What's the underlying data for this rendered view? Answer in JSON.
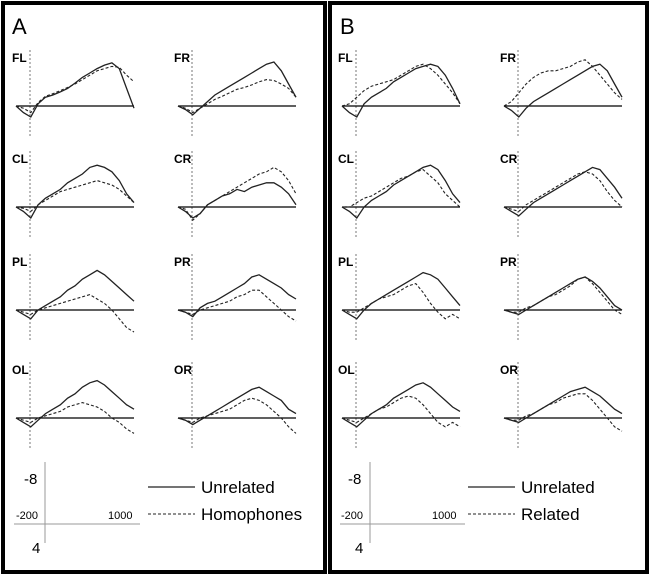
{
  "chart_data": [
    {
      "type": "line",
      "panel_label": "A",
      "legend": [
        "Unrelated",
        "Homophones"
      ],
      "scale": {
        "y_top": "-8",
        "y_bottom": "4",
        "x_start": "-200",
        "x_end": "1000"
      },
      "channels": [
        {
          "name": "FL",
          "series": [
            {
              "name": "Unrelated",
              "style": "solid",
              "values": [
                0.0,
                -1.5,
                -2.5,
                0.5,
                2.0,
                2.5,
                3.2,
                4.0,
                5.2,
                6.5,
                7.5,
                8.5,
                9.3,
                9.8,
                8.5,
                4.0,
                -0.5
              ]
            },
            {
              "name": "Homophones",
              "style": "dashed",
              "values": [
                0.0,
                -0.5,
                -1.5,
                0.8,
                2.2,
                2.8,
                3.5,
                4.2,
                5.0,
                6.0,
                7.0,
                8.0,
                8.5,
                9.0,
                8.8,
                7.0,
                5.5
              ]
            }
          ]
        },
        {
          "name": "FR",
          "series": [
            {
              "name": "Unrelated",
              "style": "solid",
              "values": [
                0.0,
                -0.8,
                -2.0,
                -0.5,
                1.0,
                2.5,
                3.5,
                4.5,
                5.5,
                6.5,
                7.5,
                8.5,
                9.5,
                10.0,
                8.0,
                5.0,
                2.0
              ]
            },
            {
              "name": "Homophones",
              "style": "dashed",
              "values": [
                0.0,
                -0.5,
                -1.5,
                -0.5,
                0.5,
                1.5,
                2.2,
                3.0,
                3.8,
                4.2,
                4.8,
                5.5,
                6.0,
                5.8,
                5.0,
                4.0,
                2.0
              ]
            }
          ]
        },
        {
          "name": "CL",
          "series": [
            {
              "name": "Unrelated",
              "style": "solid",
              "values": [
                0.0,
                -1.0,
                -2.5,
                0.5,
                2.0,
                3.0,
                4.0,
                5.5,
                6.5,
                7.5,
                9.0,
                9.5,
                9.0,
                8.0,
                6.0,
                3.0,
                1.0
              ]
            },
            {
              "name": "Homophones",
              "style": "dashed",
              "values": [
                0.0,
                -0.3,
                -1.0,
                0.5,
                1.5,
                2.5,
                3.5,
                4.0,
                4.5,
                5.0,
                5.5,
                6.0,
                5.5,
                5.0,
                4.0,
                2.5,
                1.0
              ]
            }
          ]
        },
        {
          "name": "CR",
          "series": [
            {
              "name": "Unrelated",
              "style": "solid",
              "values": [
                0.0,
                -1.0,
                -2.5,
                -1.5,
                0.5,
                1.5,
                2.5,
                3.0,
                4.0,
                3.5,
                4.5,
                5.0,
                5.5,
                5.5,
                4.5,
                3.0,
                0.5
              ]
            },
            {
              "name": "Homophones",
              "style": "dashed",
              "values": [
                0.0,
                -0.5,
                -3.0,
                -1.5,
                0.5,
                1.5,
                2.5,
                3.5,
                4.5,
                5.5,
                6.5,
                7.5,
                8.0,
                9.0,
                8.0,
                6.0,
                3.0
              ]
            }
          ]
        },
        {
          "name": "PL",
          "series": [
            {
              "name": "Unrelated",
              "style": "solid",
              "values": [
                0.0,
                -1.0,
                -2.0,
                0.0,
                1.0,
                2.0,
                3.0,
                4.5,
                5.5,
                7.0,
                8.0,
                9.0,
                8.0,
                6.5,
                5.0,
                3.5,
                2.0
              ]
            },
            {
              "name": "Homophones",
              "style": "dashed",
              "values": [
                0.0,
                -0.5,
                -1.0,
                0.0,
                0.5,
                1.0,
                1.5,
                2.0,
                2.5,
                3.0,
                3.5,
                2.5,
                1.5,
                0.0,
                -2.0,
                -4.0,
                -5.0
              ]
            }
          ]
        },
        {
          "name": "PR",
          "series": [
            {
              "name": "Unrelated",
              "style": "solid",
              "values": [
                0.0,
                -0.5,
                -1.5,
                0.5,
                1.5,
                2.0,
                3.0,
                4.0,
                5.0,
                6.0,
                7.5,
                8.0,
                7.0,
                6.0,
                5.0,
                3.5,
                2.5
              ]
            },
            {
              "name": "Homophones",
              "style": "dashed",
              "values": [
                0.0,
                -0.5,
                -1.0,
                0.0,
                0.5,
                1.0,
                1.5,
                2.0,
                3.0,
                3.5,
                4.5,
                4.5,
                3.0,
                1.5,
                0.0,
                -1.5,
                -2.5
              ]
            }
          ]
        },
        {
          "name": "OL",
          "series": [
            {
              "name": "Unrelated",
              "style": "solid",
              "values": [
                0.0,
                -1.0,
                -2.0,
                -0.5,
                1.0,
                2.0,
                3.0,
                4.5,
                5.5,
                7.0,
                8.0,
                8.5,
                7.5,
                6.0,
                4.5,
                3.0,
                2.0
              ]
            },
            {
              "name": "Homophones",
              "style": "dashed",
              "values": [
                0.0,
                -0.5,
                -1.0,
                0.0,
                0.5,
                1.0,
                1.5,
                2.5,
                3.0,
                3.5,
                3.0,
                2.5,
                1.5,
                0.0,
                -1.0,
                -2.5,
                -3.5
              ]
            }
          ]
        },
        {
          "name": "OR",
          "series": [
            {
              "name": "Unrelated",
              "style": "solid",
              "values": [
                0.0,
                -0.5,
                -1.5,
                -0.5,
                0.5,
                1.5,
                2.5,
                3.5,
                4.5,
                5.5,
                6.5,
                7.0,
                6.0,
                5.0,
                4.0,
                2.0,
                1.0
              ]
            },
            {
              "name": "Homophones",
              "style": "dashed",
              "values": [
                0.0,
                -0.5,
                -1.0,
                0.0,
                0.5,
                1.0,
                1.5,
                2.0,
                3.0,
                4.0,
                4.5,
                4.0,
                3.0,
                1.5,
                0.0,
                -2.0,
                -3.5
              ]
            }
          ]
        }
      ]
    },
    {
      "type": "line",
      "panel_label": "B",
      "legend": [
        "Unrelated",
        "Related"
      ],
      "scale": {
        "y_top": "-8",
        "y_bottom": "4",
        "x_start": "-200",
        "x_end": "1000"
      },
      "channels": [
        {
          "name": "FL",
          "series": [
            {
              "name": "Unrelated",
              "style": "solid",
              "values": [
                0.0,
                -1.5,
                -2.5,
                0.5,
                2.0,
                3.0,
                4.0,
                5.5,
                6.5,
                7.5,
                8.5,
                9.0,
                9.5,
                9.0,
                7.0,
                4.0,
                0.5
              ]
            },
            {
              "name": "Related",
              "style": "dashed",
              "values": [
                0.0,
                0.5,
                2.0,
                3.5,
                4.5,
                5.0,
                5.5,
                6.0,
                7.0,
                8.0,
                9.0,
                9.5,
                8.5,
                7.0,
                5.0,
                3.0,
                0.5
              ]
            }
          ]
        },
        {
          "name": "FR",
          "series": [
            {
              "name": "Unrelated",
              "style": "solid",
              "values": [
                0.0,
                -1.0,
                -2.5,
                -0.5,
                1.0,
                2.0,
                3.0,
                4.0,
                5.0,
                6.0,
                7.0,
                8.0,
                9.0,
                9.5,
                8.0,
                5.0,
                2.0
              ]
            },
            {
              "name": "Related",
              "style": "dashed",
              "values": [
                0.0,
                1.0,
                3.0,
                5.0,
                6.5,
                7.5,
                8.0,
                8.0,
                8.5,
                9.0,
                10.0,
                10.5,
                9.0,
                7.0,
                5.0,
                3.0,
                1.5
              ]
            }
          ]
        },
        {
          "name": "CL",
          "series": [
            {
              "name": "Unrelated",
              "style": "solid",
              "values": [
                0.0,
                -1.0,
                -2.5,
                0.0,
                1.5,
                2.5,
                3.5,
                5.0,
                6.0,
                7.0,
                8.0,
                9.0,
                9.5,
                8.5,
                6.0,
                3.0,
                1.0
              ]
            },
            {
              "name": "Related",
              "style": "dashed",
              "values": [
                0.0,
                0.0,
                1.0,
                2.0,
                2.5,
                3.5,
                4.5,
                5.5,
                6.5,
                7.0,
                8.0,
                8.5,
                7.0,
                5.5,
                3.0,
                1.5,
                0.0
              ]
            }
          ]
        },
        {
          "name": "CR",
          "series": [
            {
              "name": "Unrelated",
              "style": "solid",
              "values": [
                0.0,
                -1.0,
                -2.0,
                -0.5,
                1.0,
                2.0,
                3.0,
                4.0,
                5.0,
                6.0,
                7.0,
                8.0,
                9.0,
                8.5,
                6.5,
                4.5,
                2.0
              ]
            },
            {
              "name": "Related",
              "style": "dashed",
              "values": [
                0.0,
                -0.5,
                -1.0,
                0.5,
                1.5,
                2.5,
                3.5,
                4.5,
                5.5,
                6.5,
                7.5,
                8.0,
                7.5,
                6.0,
                3.5,
                1.5,
                0.0
              ]
            }
          ]
        },
        {
          "name": "PL",
          "series": [
            {
              "name": "Unrelated",
              "style": "solid",
              "values": [
                0.0,
                -1.0,
                -2.0,
                0.0,
                1.5,
                2.5,
                3.5,
                4.5,
                5.5,
                6.5,
                7.5,
                8.5,
                8.0,
                7.0,
                5.0,
                3.0,
                1.0
              ]
            },
            {
              "name": "Related",
              "style": "dashed",
              "values": [
                0.0,
                -0.5,
                -0.5,
                0.5,
                1.5,
                2.5,
                3.0,
                3.5,
                4.5,
                5.5,
                6.0,
                4.0,
                1.5,
                -0.5,
                -2.0,
                -1.0,
                -2.0
              ]
            }
          ]
        },
        {
          "name": "PR",
          "series": [
            {
              "name": "Unrelated",
              "style": "solid",
              "values": [
                0.0,
                -0.5,
                -1.0,
                0.0,
                1.0,
                2.0,
                3.0,
                4.0,
                5.0,
                6.0,
                7.0,
                7.5,
                6.5,
                5.0,
                3.0,
                1.0,
                0.0
              ]
            },
            {
              "name": "Related",
              "style": "dashed",
              "values": [
                0.0,
                -0.5,
                -0.5,
                0.5,
                1.0,
                2.0,
                3.0,
                3.5,
                4.5,
                5.5,
                7.0,
                7.5,
                6.0,
                4.0,
                2.0,
                0.0,
                -1.0
              ]
            }
          ]
        },
        {
          "name": "OL",
          "series": [
            {
              "name": "Unrelated",
              "style": "solid",
              "values": [
                0.0,
                -1.0,
                -2.0,
                -0.5,
                1.0,
                2.0,
                3.0,
                4.5,
                5.5,
                6.5,
                7.5,
                8.0,
                7.0,
                5.5,
                4.0,
                2.5,
                1.5
              ]
            },
            {
              "name": "Related",
              "style": "dashed",
              "values": [
                0.0,
                -0.5,
                -1.0,
                0.0,
                1.0,
                2.0,
                2.5,
                3.5,
                4.5,
                5.0,
                4.5,
                3.0,
                1.0,
                -1.0,
                -2.0,
                -1.0,
                -2.0
              ]
            }
          ]
        },
        {
          "name": "OR",
          "series": [
            {
              "name": "Unrelated",
              "style": "solid",
              "values": [
                0.0,
                -0.5,
                -1.0,
                0.0,
                1.0,
                2.0,
                3.0,
                4.0,
                5.0,
                6.0,
                6.5,
                7.0,
                6.0,
                5.0,
                3.5,
                2.0,
                1.0
              ]
            },
            {
              "name": "Related",
              "style": "dashed",
              "values": [
                0.0,
                -0.5,
                -0.5,
                0.5,
                1.0,
                2.0,
                3.0,
                3.5,
                4.5,
                5.0,
                5.5,
                5.5,
                4.0,
                2.0,
                0.0,
                -2.0,
                -3.0
              ]
            }
          ]
        }
      ]
    }
  ]
}
